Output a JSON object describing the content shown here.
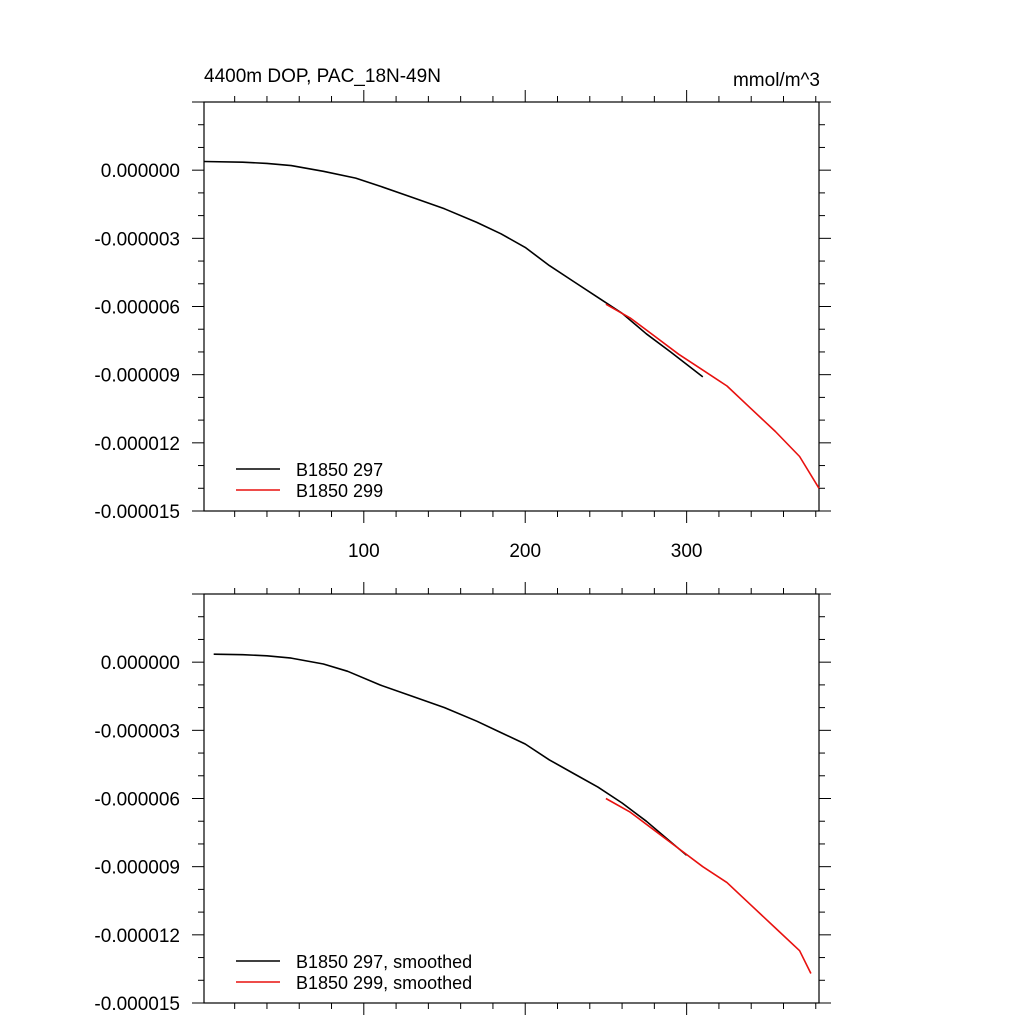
{
  "title_left": "4400m DOP, PAC_18N-49N",
  "title_right": "mmol/m^3",
  "colors": {
    "series_297": "#000000",
    "series_299": "#e8110f",
    "axis": "#000000",
    "background": "#ffffff"
  },
  "chart_data": [
    {
      "type": "line",
      "title": "4400m DOP, PAC_18N-49N",
      "units": "mmol/m^3",
      "xlim": [
        1,
        382
      ],
      "ylim": [
        -1.5e-05,
        3e-06
      ],
      "x_ticks": [
        100,
        200,
        300
      ],
      "y_ticks": [
        0.0,
        -3e-06,
        -6e-06,
        -9e-06,
        -1.2e-05,
        -1.5e-05
      ],
      "y_tick_labels": [
        "0.000000",
        "-0.000003",
        "-0.000006",
        "-0.000009",
        "-0.000012",
        "-0.000015"
      ],
      "x_tick_labels": [
        "100",
        "200",
        "300"
      ],
      "legend_position": "bottom-left",
      "grid": false,
      "series": [
        {
          "name": "B1850 297",
          "color": "#000000",
          "points": [
            [
              1,
              3.8e-07
            ],
            [
              25,
              3.5e-07
            ],
            [
              40,
              3e-07
            ],
            [
              55,
              2e-07
            ],
            [
              75,
              -5e-08
            ],
            [
              95,
              -3.5e-07
            ],
            [
              110,
              -7e-07
            ],
            [
              130,
              -1.2e-06
            ],
            [
              150,
              -1.7e-06
            ],
            [
              170,
              -2.3e-06
            ],
            [
              185,
              -2.8e-06
            ],
            [
              200,
              -3.4e-06
            ],
            [
              215,
              -4.2e-06
            ],
            [
              230,
              -4.9e-06
            ],
            [
              245,
              -5.6e-06
            ],
            [
              260,
              -6.3e-06
            ],
            [
              275,
              -7.2e-06
            ],
            [
              290,
              -8e-06
            ],
            [
              310,
              -9.1e-06
            ]
          ]
        },
        {
          "name": "B1850 299",
          "color": "#e8110f",
          "points": [
            [
              250,
              -5.9e-06
            ],
            [
              265,
              -6.5e-06
            ],
            [
              280,
              -7.3e-06
            ],
            [
              295,
              -8.1e-06
            ],
            [
              310,
              -8.8e-06
            ],
            [
              325,
              -9.5e-06
            ],
            [
              340,
              -1.05e-05
            ],
            [
              355,
              -1.15e-05
            ],
            [
              370,
              -1.26e-05
            ],
            [
              382,
              -1.4e-05
            ]
          ]
        }
      ]
    },
    {
      "type": "line",
      "xlim": [
        1,
        382
      ],
      "ylim": [
        -1.5e-05,
        3e-06
      ],
      "x_ticks": [
        100,
        200,
        300
      ],
      "y_ticks": [
        0.0,
        -3e-06,
        -6e-06,
        -9e-06,
        -1.2e-05,
        -1.5e-05
      ],
      "y_tick_labels": [
        "0.000000",
        "-0.000003",
        "-0.000006",
        "-0.000009",
        "-0.000012",
        "-0.000015"
      ],
      "legend_position": "bottom-left",
      "grid": false,
      "series": [
        {
          "name": "B1850 297, smoothed",
          "color": "#000000",
          "points": [
            [
              7,
              3.5e-07
            ],
            [
              25,
              3.3e-07
            ],
            [
              40,
              2.8e-07
            ],
            [
              55,
              1.8e-07
            ],
            [
              75,
              -8e-08
            ],
            [
              90,
              -4e-07
            ],
            [
              110,
              -1e-06
            ],
            [
              130,
              -1.5e-06
            ],
            [
              150,
              -2e-06
            ],
            [
              170,
              -2.6e-06
            ],
            [
              185,
              -3.1e-06
            ],
            [
              200,
              -3.6e-06
            ],
            [
              215,
              -4.3e-06
            ],
            [
              230,
              -4.9e-06
            ],
            [
              245,
              -5.5e-06
            ],
            [
              260,
              -6.2e-06
            ],
            [
              275,
              -7e-06
            ],
            [
              290,
              -7.9e-06
            ],
            [
              300,
              -8.5e-06
            ]
          ]
        },
        {
          "name": "B1850 299, smoothed",
          "color": "#e8110f",
          "points": [
            [
              250,
              -6e-06
            ],
            [
              265,
              -6.6e-06
            ],
            [
              280,
              -7.4e-06
            ],
            [
              295,
              -8.2e-06
            ],
            [
              310,
              -9e-06
            ],
            [
              325,
              -9.7e-06
            ],
            [
              340,
              -1.07e-05
            ],
            [
              355,
              -1.17e-05
            ],
            [
              370,
              -1.27e-05
            ],
            [
              377,
              -1.37e-05
            ]
          ]
        }
      ]
    }
  ]
}
